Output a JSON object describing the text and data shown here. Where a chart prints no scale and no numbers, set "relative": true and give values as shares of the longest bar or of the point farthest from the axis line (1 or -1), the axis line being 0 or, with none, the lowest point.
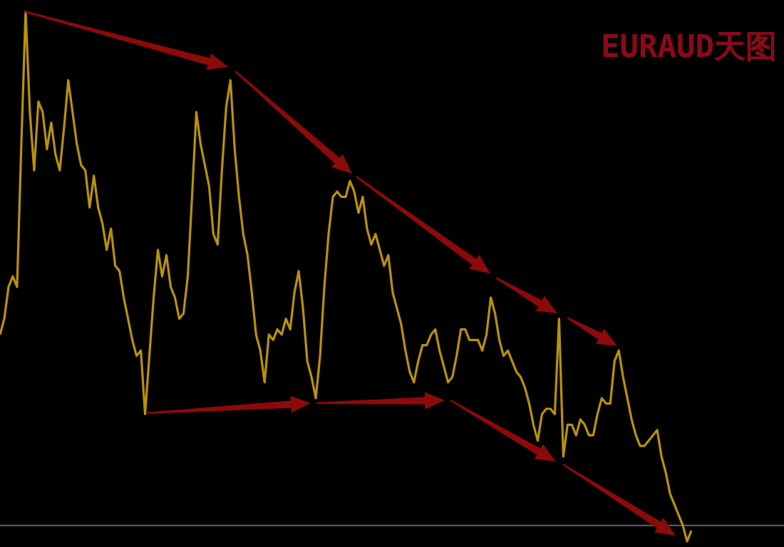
{
  "chart_data": {
    "type": "line",
    "title": "EURAUD天图",
    "relative": true,
    "marker": "none",
    "line_style": "solid",
    "categories": [
      null,
      null,
      null,
      null,
      null,
      null,
      null,
      null,
      null,
      null,
      null,
      null,
      null,
      null,
      null,
      null,
      null,
      null,
      null,
      null,
      null,
      null,
      null,
      null,
      null,
      null,
      null,
      null,
      null,
      null,
      null,
      null,
      null,
      null,
      null,
      null,
      null,
      null,
      null,
      null,
      null,
      null,
      null,
      null,
      null,
      null,
      null,
      null,
      null,
      null,
      null,
      null,
      null,
      null,
      null,
      null,
      null,
      null,
      null,
      null,
      null,
      null,
      null,
      null,
      null,
      null,
      null,
      null,
      null,
      null,
      null,
      null,
      null,
      null,
      null,
      null,
      null,
      null,
      null,
      null,
      null,
      null,
      null,
      null,
      null,
      null,
      null,
      null,
      null,
      null,
      null,
      null,
      null,
      null,
      null,
      null,
      null,
      null,
      null,
      null,
      null,
      null,
      null,
      null,
      null,
      null,
      null,
      null,
      null,
      null,
      null,
      null,
      null,
      null,
      null,
      null,
      null,
      null,
      null,
      null,
      null,
      null,
      null,
      null,
      null,
      null,
      null,
      null,
      null,
      null,
      null,
      null,
      null,
      null,
      null,
      null,
      null,
      null,
      null,
      null,
      null,
      null,
      null,
      null,
      null,
      null,
      null,
      null,
      null,
      null,
      null,
      null,
      null,
      null,
      null,
      null,
      null,
      null,
      null,
      null,
      null,
      null,
      null
    ],
    "series": [
      {
        "color": "#b8920a",
        "values": [
          0.39,
          0.42,
          0.48,
          0.5,
          0.48,
          0.75,
          1.0,
          0.81,
          0.7,
          0.83,
          0.81,
          0.74,
          0.79,
          0.73,
          0.7,
          0.78,
          0.87,
          0.81,
          0.75,
          0.71,
          0.7,
          0.63,
          0.69,
          0.63,
          0.6,
          0.55,
          0.59,
          0.52,
          0.51,
          0.46,
          0.42,
          0.38,
          0.35,
          0.36,
          0.24,
          0.35,
          0.46,
          0.55,
          0.5,
          0.54,
          0.48,
          0.46,
          0.42,
          0.43,
          0.5,
          0.65,
          0.81,
          0.75,
          0.71,
          0.67,
          0.58,
          0.56,
          0.7,
          0.82,
          0.87,
          0.74,
          0.65,
          0.58,
          0.54,
          0.47,
          0.39,
          0.36,
          0.3,
          0.39,
          0.38,
          0.4,
          0.39,
          0.42,
          0.4,
          0.47,
          0.51,
          0.44,
          0.34,
          0.31,
          0.27,
          0.35,
          0.48,
          0.58,
          0.65,
          0.66,
          0.65,
          0.65,
          0.68,
          0.66,
          0.62,
          0.65,
          0.59,
          0.56,
          0.58,
          0.55,
          0.52,
          0.54,
          0.47,
          0.44,
          0.41,
          0.36,
          0.32,
          0.3,
          0.34,
          0.37,
          0.37,
          0.39,
          0.4,
          0.36,
          0.33,
          0.3,
          0.31,
          0.35,
          0.4,
          0.4,
          0.38,
          0.38,
          0.38,
          0.36,
          0.39,
          0.46,
          0.43,
          0.38,
          0.35,
          0.36,
          0.34,
          0.32,
          0.31,
          0.29,
          0.26,
          0.22,
          0.19,
          0.24,
          0.25,
          0.25,
          0.24,
          0.42,
          0.16,
          0.22,
          0.22,
          0.2,
          0.23,
          0.22,
          0.2,
          0.2,
          0.24,
          0.27,
          0.26,
          0.26,
          0.34,
          0.36,
          0.31,
          0.27,
          0.23,
          0.2,
          0.18,
          0.18,
          0.19,
          0.2,
          0.21,
          0.16,
          0.13,
          0.09,
          0.07,
          0.05,
          0.03,
          0,
          0.02
        ]
      }
    ],
    "ref_lines": [
      {
        "axis": "y",
        "value": 0.03,
        "color": "#5c6370"
      }
    ]
  }
}
